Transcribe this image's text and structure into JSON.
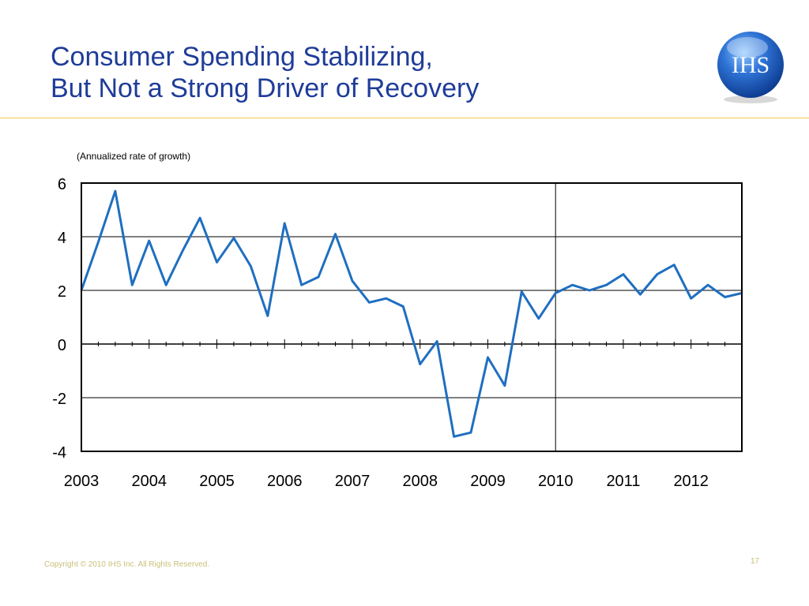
{
  "slide": {
    "title_line1": "Consumer Spending Stabilizing,",
    "title_line2": "But Not a Strong Driver of Recovery",
    "logo_text": "IHS",
    "footer": "Copyright © 2010 IHS Inc. All Rights Reserved.",
    "page_number": "17"
  },
  "colors": {
    "title": "#1f3c99",
    "rule": "#f2c94c",
    "series": "#1f6fc0",
    "footer": "#c9c07a"
  },
  "chart_data": {
    "type": "line",
    "title": "",
    "ylabel": "(Annualized rate of growth)",
    "xlabel": "",
    "ylim": [
      -4,
      6
    ],
    "yticks": [
      "6",
      "4",
      "2",
      "0",
      "-2",
      "-4"
    ],
    "year_labels": [
      "2003",
      "2004",
      "2005",
      "2006",
      "2007",
      "2008",
      "2009",
      "2010",
      "2011",
      "2012"
    ],
    "forecast_divider_year": "2010",
    "grid": true,
    "x_unit": "quarters from 2003 Q1",
    "series": [
      {
        "values": [
          2.0,
          3.8,
          5.7,
          2.2,
          3.85,
          2.2,
          3.5,
          4.7,
          3.05,
          3.95,
          2.9,
          1.05,
          4.5,
          2.2,
          2.5,
          4.1,
          2.35,
          1.55,
          1.7,
          1.4,
          -0.75,
          0.1,
          -3.45,
          -3.3,
          -0.5,
          -1.55,
          1.95,
          0.95,
          1.9,
          2.2,
          2.0,
          2.2,
          2.6,
          1.85,
          2.6,
          2.95,
          1.7,
          2.2,
          1.75,
          1.9
        ]
      }
    ]
  }
}
